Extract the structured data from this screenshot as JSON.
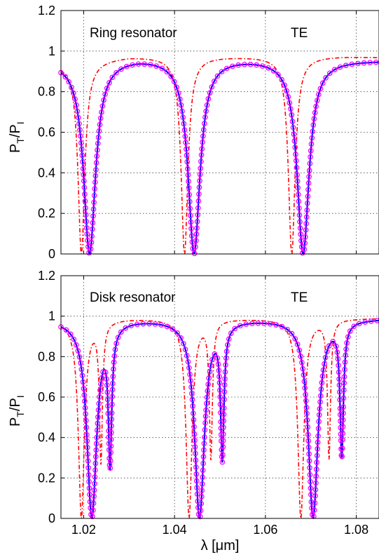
{
  "chart_data": [
    {
      "type": "line",
      "panel": "top",
      "annotations": {
        "left": "Ring resonator",
        "right": "TE"
      },
      "ylabel": {
        "main": "P",
        "sub1": "T",
        "slash": "/P",
        "sub2": "I"
      },
      "xlabel": "",
      "xlim": [
        1.015,
        1.085
      ],
      "ylim": [
        0,
        1.2
      ],
      "yticks": [
        "0",
        "0.2",
        "0.4",
        "0.6",
        "0.8",
        "1",
        "1.2"
      ],
      "ytick_values": [
        0,
        0.2,
        0.4,
        0.6,
        0.8,
        1.0,
        1.2
      ],
      "xtick_values": [
        1.02,
        1.04,
        1.06,
        1.08
      ],
      "grid": true,
      "colors": {
        "solid": "#0000ff",
        "markers": "#ff00ff",
        "dashed": "#ff0000"
      },
      "solid_model": {
        "baseline": [
          [
            1.015,
            0.955
          ],
          [
            1.032,
            0.975
          ],
          [
            1.056,
            0.97
          ],
          [
            1.08,
            0.958
          ],
          [
            1.085,
            0.956
          ]
        ],
        "dips": [
          {
            "center": 1.0213,
            "depth": 1.0,
            "width": 0.0016
          },
          {
            "center": 1.0443,
            "depth": 1.0,
            "width": 0.0016
          },
          {
            "center": 1.0683,
            "depth": 1.0,
            "width": 0.0016
          }
        ]
      },
      "dashed_model": {
        "baseline": [
          [
            1.015,
            0.94
          ],
          [
            1.03,
            0.975
          ],
          [
            1.053,
            0.975
          ],
          [
            1.077,
            0.975
          ],
          [
            1.085,
            0.97
          ]
        ],
        "dips": [
          {
            "center": 1.0195,
            "depth": 1.0,
            "width": 0.0009
          },
          {
            "center": 1.0422,
            "depth": 1.0,
            "width": 0.0009
          },
          {
            "center": 1.0658,
            "depth": 1.0,
            "width": 0.0009
          }
        ]
      }
    },
    {
      "type": "line",
      "panel": "bottom",
      "annotations": {
        "left": "Disk resonator",
        "right": "TE"
      },
      "ylabel": {
        "main": "P",
        "sub1": "T",
        "slash": "/P",
        "sub2": "I"
      },
      "xlabel": "λ [μm]",
      "xlim": [
        1.015,
        1.085
      ],
      "ylim": [
        0,
        1.2
      ],
      "yticks": [
        "0",
        "0.2",
        "0.4",
        "0.6",
        "0.8",
        "1",
        "1.2"
      ],
      "ytick_values": [
        0,
        0.2,
        0.4,
        0.6,
        0.8,
        1.0,
        1.2
      ],
      "xticks": [
        "1.02",
        "1.04",
        "1.06",
        "1.08"
      ],
      "xtick_values": [
        1.02,
        1.04,
        1.06,
        1.08
      ],
      "grid": true,
      "colors": {
        "solid": "#0000ff",
        "markers": "#ff00ff",
        "dashed": "#ff0000"
      },
      "solid_model": {
        "baseline": [
          [
            1.015,
            0.985
          ],
          [
            1.03,
            0.99
          ],
          [
            1.055,
            0.99
          ],
          [
            1.08,
            0.99
          ],
          [
            1.085,
            0.99
          ]
        ],
        "dips": [
          {
            "center": 1.0218,
            "depth": 1.0,
            "width": 0.0013
          },
          {
            "center": 1.0258,
            "depth": 0.73,
            "width": 0.00045
          },
          {
            "center": 1.0455,
            "depth": 1.0,
            "width": 0.0013
          },
          {
            "center": 1.0505,
            "depth": 0.7,
            "width": 0.00045
          },
          {
            "center": 1.0705,
            "depth": 1.0,
            "width": 0.0013
          },
          {
            "center": 1.0768,
            "depth": 0.69,
            "width": 0.00045
          }
        ]
      },
      "dashed_model": {
        "baseline": [
          [
            1.015,
            0.98
          ],
          [
            1.03,
            0.99
          ],
          [
            1.055,
            0.99
          ],
          [
            1.08,
            0.99
          ],
          [
            1.085,
            0.99
          ]
        ],
        "dips": [
          {
            "center": 1.0195,
            "depth": 1.0,
            "width": 0.0008
          },
          {
            "center": 1.0238,
            "depth": 0.72,
            "width": 0.0004
          },
          {
            "center": 1.0432,
            "depth": 1.0,
            "width": 0.0008
          },
          {
            "center": 1.048,
            "depth": 0.7,
            "width": 0.0004
          },
          {
            "center": 1.0678,
            "depth": 1.0,
            "width": 0.0008
          },
          {
            "center": 1.074,
            "depth": 0.7,
            "width": 0.0004
          }
        ]
      }
    }
  ]
}
